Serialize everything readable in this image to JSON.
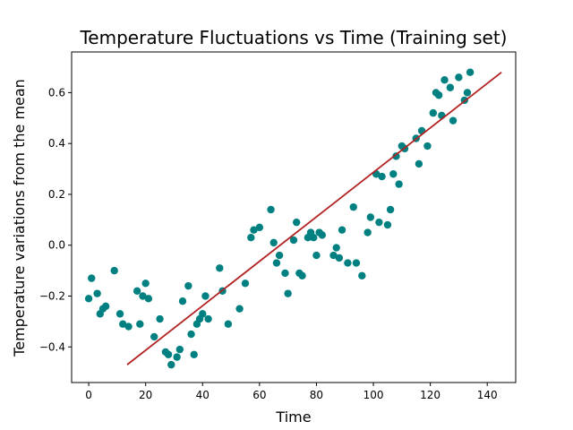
{
  "chart_data": {
    "type": "scatter",
    "title": "Temperature Fluctuations vs Time (Training set)",
    "xlabel": "Time",
    "ylabel": "Temperature variations from the mean",
    "xlim": [
      -6,
      150
    ],
    "ylim": [
      -0.54,
      0.76
    ],
    "x_ticks": [
      0,
      20,
      40,
      60,
      80,
      100,
      120,
      140
    ],
    "y_ticks": [
      -0.4,
      -0.2,
      0.0,
      0.2,
      0.4,
      0.6
    ],
    "y_tick_labels": [
      "−0.4",
      "−0.2",
      "0.0",
      "0.2",
      "0.4",
      "0.6"
    ],
    "grid": false,
    "colors": {
      "points": "#008080",
      "fit_line": "#b22222",
      "axes": "#000000",
      "background": "#ffffff"
    },
    "points": {
      "x": [
        0,
        1,
        3,
        4,
        5,
        6,
        9,
        11,
        12,
        14,
        17,
        18,
        19,
        20,
        21,
        23,
        25,
        27,
        28,
        29,
        31,
        32,
        33,
        35,
        36,
        37,
        38,
        39,
        40,
        41,
        42,
        46,
        47,
        49,
        53,
        55,
        57,
        58,
        60,
        64,
        65,
        66,
        67,
        69,
        70,
        72,
        73,
        74,
        75,
        77,
        78,
        79,
        80,
        81,
        82,
        86,
        87,
        88,
        89,
        91,
        93,
        94,
        96,
        98,
        99,
        101,
        102,
        103,
        105,
        106,
        107,
        108,
        109,
        110,
        111,
        115,
        116,
        117,
        119,
        121,
        122,
        123,
        124,
        125,
        127,
        128,
        130,
        132,
        133,
        134
      ],
      "y": [
        -0.21,
        -0.13,
        -0.19,
        -0.27,
        -0.25,
        -0.24,
        -0.1,
        -0.27,
        -0.31,
        -0.32,
        -0.18,
        -0.31,
        -0.2,
        -0.15,
        -0.21,
        -0.36,
        -0.29,
        -0.42,
        -0.43,
        -0.47,
        -0.44,
        -0.41,
        -0.22,
        -0.16,
        -0.35,
        -0.43,
        -0.31,
        -0.29,
        -0.27,
        -0.2,
        -0.29,
        -0.09,
        -0.18,
        -0.31,
        -0.25,
        -0.15,
        0.03,
        0.06,
        0.07,
        0.14,
        0.01,
        -0.07,
        -0.04,
        -0.11,
        -0.19,
        0.02,
        0.09,
        -0.11,
        -0.12,
        0.03,
        0.05,
        0.03,
        -0.04,
        0.05,
        0.04,
        -0.04,
        -0.01,
        -0.05,
        0.06,
        -0.07,
        0.15,
        -0.07,
        -0.12,
        0.05,
        0.11,
        0.28,
        0.09,
        0.27,
        0.08,
        0.14,
        0.28,
        0.35,
        0.24,
        0.39,
        0.38,
        0.42,
        0.32,
        0.45,
        0.39,
        0.52,
        0.6,
        0.59,
        0.51,
        0.65,
        0.62,
        0.49,
        0.66,
        0.57,
        0.6,
        0.68
      ]
    },
    "fit_line": {
      "x": [
        13.5,
        145
      ],
      "y": [
        -0.47,
        0.68
      ]
    }
  }
}
